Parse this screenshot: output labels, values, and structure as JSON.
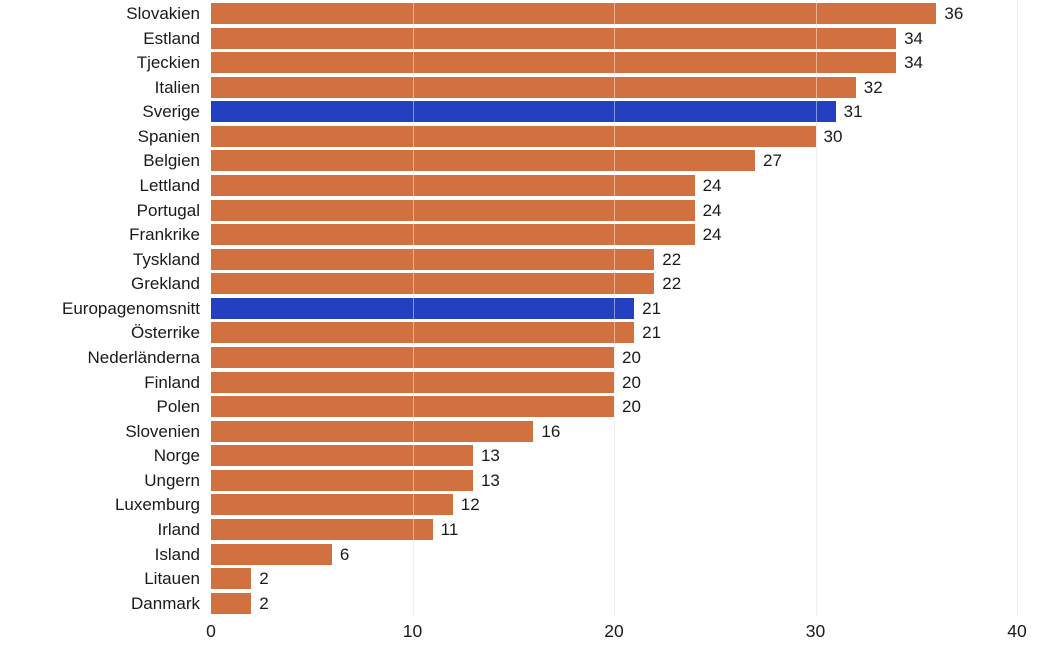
{
  "chart_data": {
    "type": "bar",
    "orientation": "horizontal",
    "title": "",
    "xlabel": "",
    "ylabel": "",
    "categories": [
      "Slovakien",
      "Estland",
      "Tjeckien",
      "Italien",
      "Sverige",
      "Spanien",
      "Belgien",
      "Lettland",
      "Portugal",
      "Frankrike",
      "Tyskland",
      "Grekland",
      "Europagenomsnitt",
      "Österrike",
      "Nederländerna",
      "Finland",
      "Polen",
      "Slovenien",
      "Norge",
      "Ungern",
      "Luxemburg",
      "Irland",
      "Island",
      "Litauen",
      "Danmark"
    ],
    "values": [
      36,
      34,
      34,
      32,
      31,
      30,
      27,
      24,
      24,
      24,
      22,
      22,
      21,
      21,
      20,
      20,
      20,
      16,
      13,
      13,
      12,
      11,
      6,
      2,
      2
    ],
    "value_labels": [
      "36",
      "34",
      "34",
      "32",
      "31",
      "30",
      "27",
      "24",
      "24",
      "24",
      "22",
      "22",
      "21",
      "21",
      "20",
      "20",
      "20",
      "16",
      "13",
      "13",
      "12",
      "11",
      "6",
      "2",
      "2"
    ],
    "highlight_categories": [
      "Sverige",
      "Europagenomsnitt"
    ],
    "colors": {
      "bar": "#d1713f",
      "highlight": "#2240c0",
      "gridline": "#e2e2e2",
      "text": "#1a1a1a"
    },
    "xlim": [
      0,
      40
    ],
    "x_ticks": [
      0,
      10,
      20,
      30,
      40
    ],
    "x_tick_labels": [
      "0",
      "10",
      "20",
      "30",
      "40"
    ],
    "grid": "vertical",
    "legend": "none",
    "value_labels_shown": true
  }
}
